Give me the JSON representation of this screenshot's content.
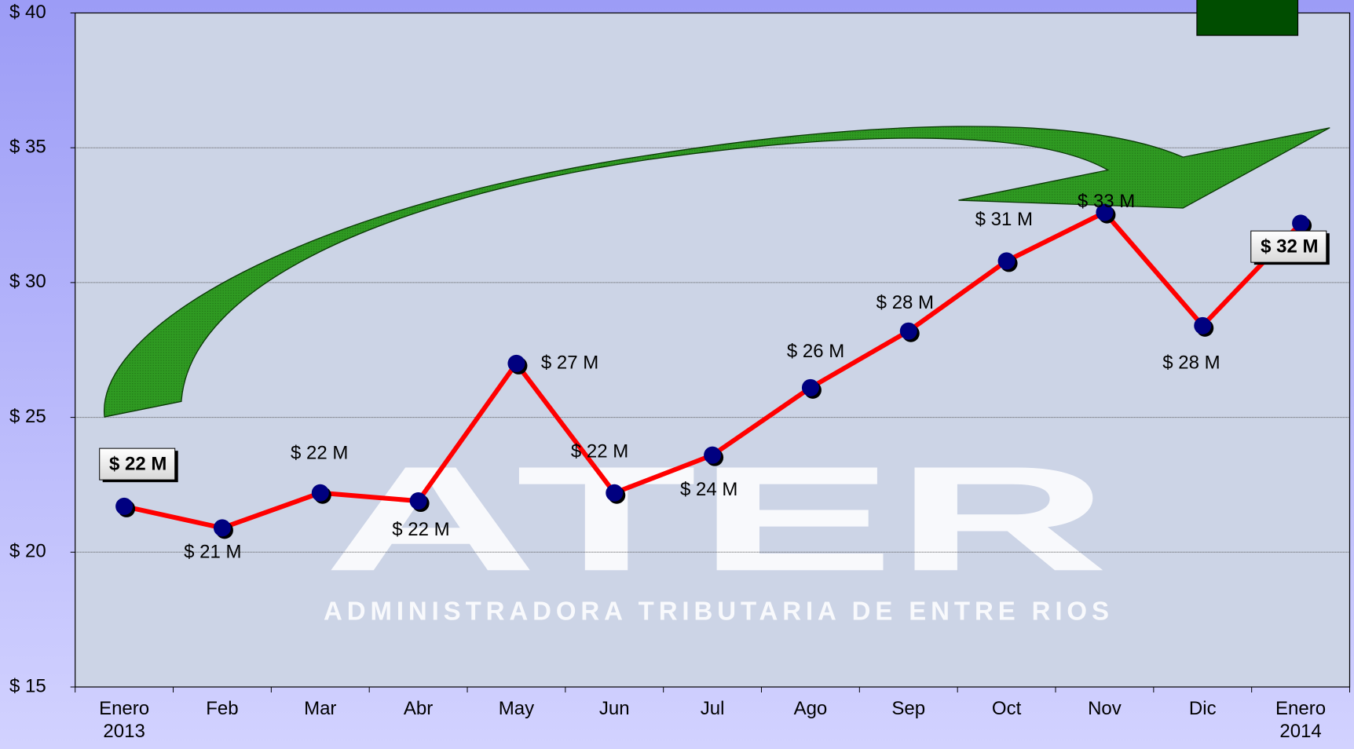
{
  "chart_data": {
    "type": "line",
    "categories": [
      "Enero 2013",
      "Feb",
      "Mar",
      "Abr",
      "May",
      "Jun",
      "Jul",
      "Ago",
      "Sep",
      "Oct",
      "Nov",
      "Dic",
      "Enero 2014"
    ],
    "values": [
      21.7,
      20.9,
      22.2,
      21.9,
      27.0,
      22.2,
      23.6,
      26.1,
      28.2,
      30.8,
      32.6,
      28.4,
      32.2
    ],
    "value_labels": [
      "$ 22 M",
      "$ 21 M",
      "$ 22 M",
      "$ 22 M",
      "$ 27 M",
      "$ 22 M",
      "$ 24 M",
      "$ 26 M",
      "$ 28 M",
      "$ 31 M",
      "$ 33 M",
      "$ 28 M",
      "$ 32 M"
    ],
    "color": "#ff0000",
    "marker_color": "#000080",
    "ylim": [
      15,
      40
    ],
    "yticks": [
      {
        "value": 15,
        "label": "$ 15"
      },
      {
        "value": 20,
        "label": "$ 20"
      },
      {
        "value": 25,
        "label": "$ 25"
      },
      {
        "value": 30,
        "label": "$ 30"
      },
      {
        "value": 35,
        "label": "$ 35"
      },
      {
        "value": 40,
        "label": "$ 40"
      }
    ],
    "grid": true,
    "watermark": {
      "title": "ATER",
      "subtitle": "ADMINISTRADORA TRIBUTARIA DE ENTRE RIOS"
    }
  }
}
